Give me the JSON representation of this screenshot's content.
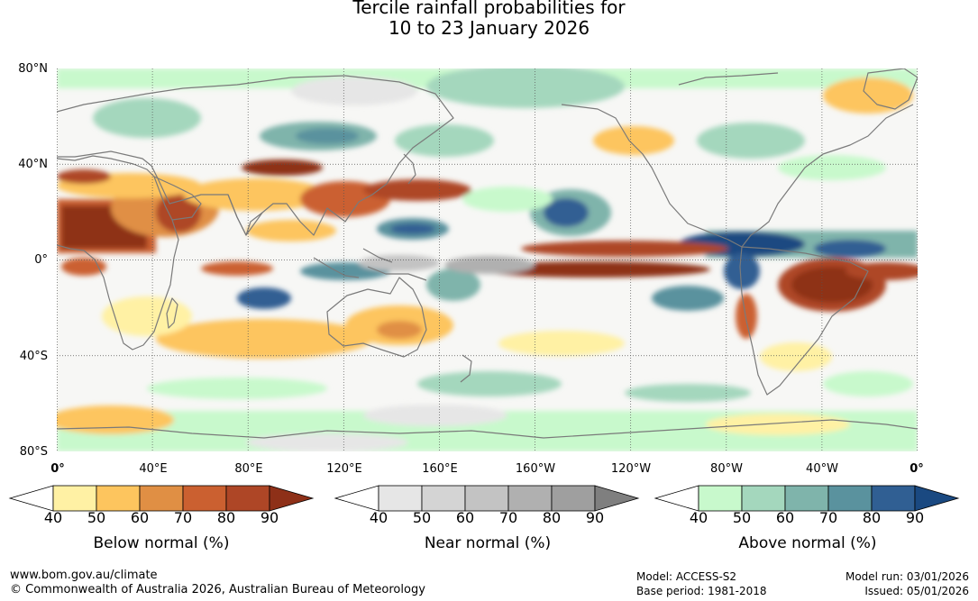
{
  "title": {
    "line1": "Tercile rainfall probabilities for",
    "line2": "10 to 23 January 2026"
  },
  "map": {
    "lat_labels": [
      "80°N",
      "40°N",
      "0°",
      "40°S",
      "80°S"
    ],
    "lon_labels": [
      "0°",
      "40°E",
      "80°E",
      "120°E",
      "160°E",
      "160°W",
      "120°W",
      "80°W",
      "40°W",
      "0°"
    ],
    "lat_range": [
      -80,
      80
    ],
    "lon_range": [
      0,
      360
    ]
  },
  "legends": [
    {
      "title": "Below normal (%)",
      "ticks": [
        "40",
        "50",
        "60",
        "70",
        "80",
        "90"
      ],
      "colors": [
        "#fff1a4",
        "#fdc55e",
        "#e08f44",
        "#cb6030",
        "#ae4626",
        "#8e3018"
      ]
    },
    {
      "title": "Near normal (%)",
      "ticks": [
        "40",
        "50",
        "60",
        "70",
        "80",
        "90"
      ],
      "colors": [
        "#e6e6e6",
        "#d4d4d4",
        "#c3c3c3",
        "#b0b0b0",
        "#9f9f9f",
        "#7f7f7f"
      ]
    },
    {
      "title": "Above normal (%)",
      "ticks": [
        "40",
        "50",
        "60",
        "70",
        "80",
        "90"
      ],
      "colors": [
        "#c8f9cc",
        "#a4d7bd",
        "#7fb4ab",
        "#5a929e",
        "#305f93",
        "#1a4981"
      ]
    }
  ],
  "footer": {
    "url": "www.bom.gov.au/climate",
    "copyright": "© Commonwealth of Australia 2026, Australian Bureau of Meteorology",
    "model": "Model: ACCESS-S2",
    "base_period": "Base period: 1981-2018",
    "model_run": "Model run: 03/01/2026",
    "issued": "Issued: 05/01/2026"
  }
}
